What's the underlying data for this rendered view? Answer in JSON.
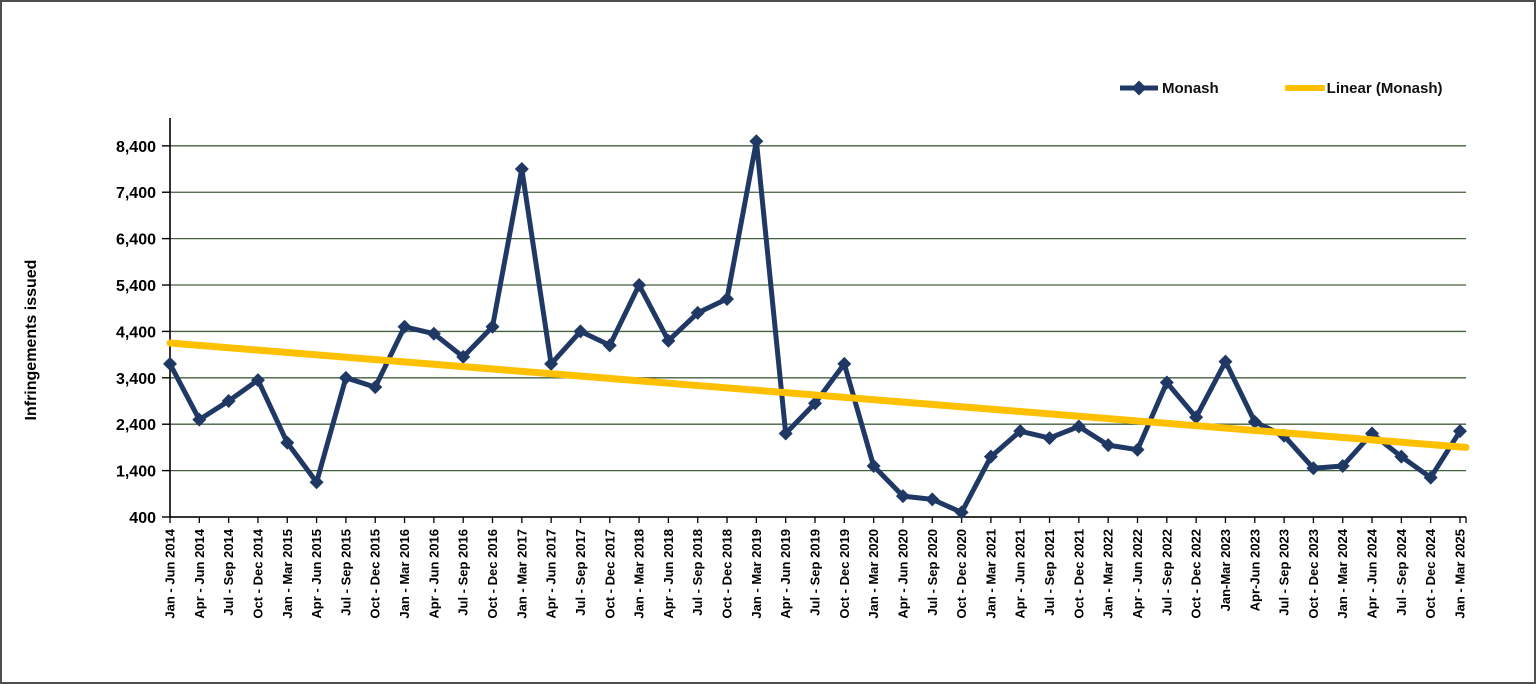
{
  "colors": {
    "series": "#1f3864",
    "trend": "#ffc000",
    "gridline": "#44613d",
    "axis": "#000000",
    "frame_border": "#4e4e4e",
    "background": "#ffffff"
  },
  "ylabel": "Infringements issued",
  "legend": {
    "monash_label": "Monash",
    "linear_label": "Linear (Monash)"
  },
  "chart_data": {
    "type": "line",
    "title": "",
    "xlabel": "",
    "ylabel": "Infringements issued",
    "ylim": [
      400,
      9000
    ],
    "yticks": [
      400,
      1400,
      2400,
      3400,
      4400,
      5400,
      6400,
      7400,
      8400
    ],
    "grid": true,
    "legend_position": "top-right",
    "categories": [
      "Jan - Jun 2014",
      "Apr - Jun 2014",
      "Jul - Sep 2014",
      "Oct - Dec 2014",
      "Jan - Mar 2015",
      "Apr - Jun 2015",
      "Jul - Sep 2015",
      "Oct - Dec 2015",
      "Jan - Mar 2016",
      "Apr - Jun 2016",
      "Jul - Sep 2016",
      "Oct - Dec 2016",
      "Jan - Mar 2017",
      "Apr - Jun 2017",
      "Jul - Sep 2017",
      "Oct - Dec 2017",
      "Jan - Mar 2018",
      "Apr - Jun 2018",
      "Jul - Sep 2018",
      "Oct - Dec 2018",
      "Jan - Mar 2019",
      "Apr - Jun 2019",
      "Jul - Sep 2019",
      "Oct - Dec 2019",
      "Jan - Mar 2020",
      "Apr - Jun 2020",
      "Jul - Sep 2020",
      "Oct - Dec 2020",
      "Jan - Mar 2021",
      "Apr - Jun 2021",
      "Jul - Sep 2021",
      "Oct - Dec 2021",
      "Jan - Mar 2022",
      "Apr - Jun 2022",
      "Jul - Sep 2022",
      "Oct - Dec 2022",
      "Jan-Mar 2023",
      "Apr-Jun 2023",
      "Jul - Sep 2023",
      "Oct - Dec 2023",
      "Jan - Mar 2024",
      "Apr - Jun 2024",
      "Jul - Sep 2024",
      "Oct - Dec 2024",
      "Jan - Mar 2025"
    ],
    "series": [
      {
        "name": "Monash",
        "color": "#1f3864",
        "marker": "diamond",
        "values": [
          3700,
          2500,
          2900,
          3350,
          2000,
          1150,
          3400,
          3200,
          4500,
          4350,
          3850,
          4500,
          7900,
          3700,
          4400,
          4100,
          5400,
          4200,
          4800,
          5100,
          8500,
          2200,
          2850,
          3700,
          1500,
          850,
          780,
          500,
          1700,
          2250,
          2100,
          2350,
          1950,
          1850,
          3300,
          2550,
          3750,
          2450,
          2150,
          1450,
          1500,
          2200,
          1700,
          1250,
          2250
        ]
      },
      {
        "name": "Linear (Monash)",
        "color": "#ffc000",
        "type": "trendline",
        "start_value": 4150,
        "end_value": 1900
      }
    ]
  }
}
